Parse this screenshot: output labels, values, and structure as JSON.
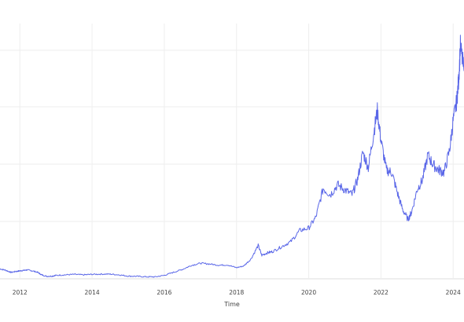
{
  "chart_data": {
    "type": "line",
    "title": "",
    "xlabel": "Time",
    "ylabel": "",
    "x_ticks": [
      "2012",
      "2014",
      "2016",
      "2018",
      "2020",
      "2022",
      "2024"
    ],
    "y_ticks": [],
    "xlim": [
      2011.45,
      2024.3
    ],
    "ylim": [
      0,
      100
    ],
    "grid": true,
    "legend": "none",
    "series": [
      {
        "color": "#5a67e8",
        "x": [
          2011.45,
          2011.6,
          2011.75,
          2011.9,
          2012.0,
          2012.1,
          2012.2,
          2012.35,
          2012.5,
          2012.6,
          2012.75,
          2012.9,
          2013.0,
          2013.25,
          2013.5,
          2013.75,
          2014.0,
          2014.25,
          2014.5,
          2014.75,
          2015.0,
          2015.25,
          2015.5,
          2015.75,
          2016.0,
          2016.25,
          2016.5,
          2016.75,
          2017.0,
          2017.25,
          2017.5,
          2017.75,
          2018.0,
          2018.2,
          2018.4,
          2018.6,
          2018.7,
          2018.85,
          2019.0,
          2019.25,
          2019.5,
          2019.75,
          2020.0,
          2020.2,
          2020.4,
          2020.6,
          2020.8,
          2021.0,
          2021.2,
          2021.35,
          2021.5,
          2021.65,
          2021.8,
          2021.9,
          2022.0,
          2022.15,
          2022.3,
          2022.45,
          2022.6,
          2022.75,
          2022.85,
          2023.0,
          2023.15,
          2023.3,
          2023.45,
          2023.6,
          2023.75,
          2023.9,
          2024.0,
          2024.1,
          2024.15,
          2024.2,
          2024.3
        ],
        "y": [
          4.0,
          3.5,
          2.6,
          3.0,
          3.2,
          3.4,
          3.6,
          3.2,
          2.6,
          1.6,
          1.0,
          1.1,
          1.4,
          1.6,
          1.8,
          1.6,
          1.8,
          1.9,
          1.9,
          1.6,
          1.1,
          1.0,
          0.8,
          0.8,
          1.4,
          2.6,
          3.8,
          5.4,
          6.3,
          6.0,
          5.5,
          5.6,
          4.5,
          5.2,
          8.0,
          13.5,
          9.5,
          10.5,
          11.0,
          13.0,
          15.0,
          19.5,
          20.5,
          25.0,
          36.5,
          34.0,
          38.0,
          36.0,
          34.0,
          40.0,
          51.0,
          45.0,
          59.0,
          68.0,
          56.0,
          44.0,
          43.0,
          35.0,
          28.0,
          24.0,
          27.0,
          36.0,
          40.0,
          50.0,
          46.0,
          44.0,
          43.0,
          52.0,
          64.0,
          72.0,
          80.0,
          94.0,
          84.0
        ]
      }
    ]
  }
}
